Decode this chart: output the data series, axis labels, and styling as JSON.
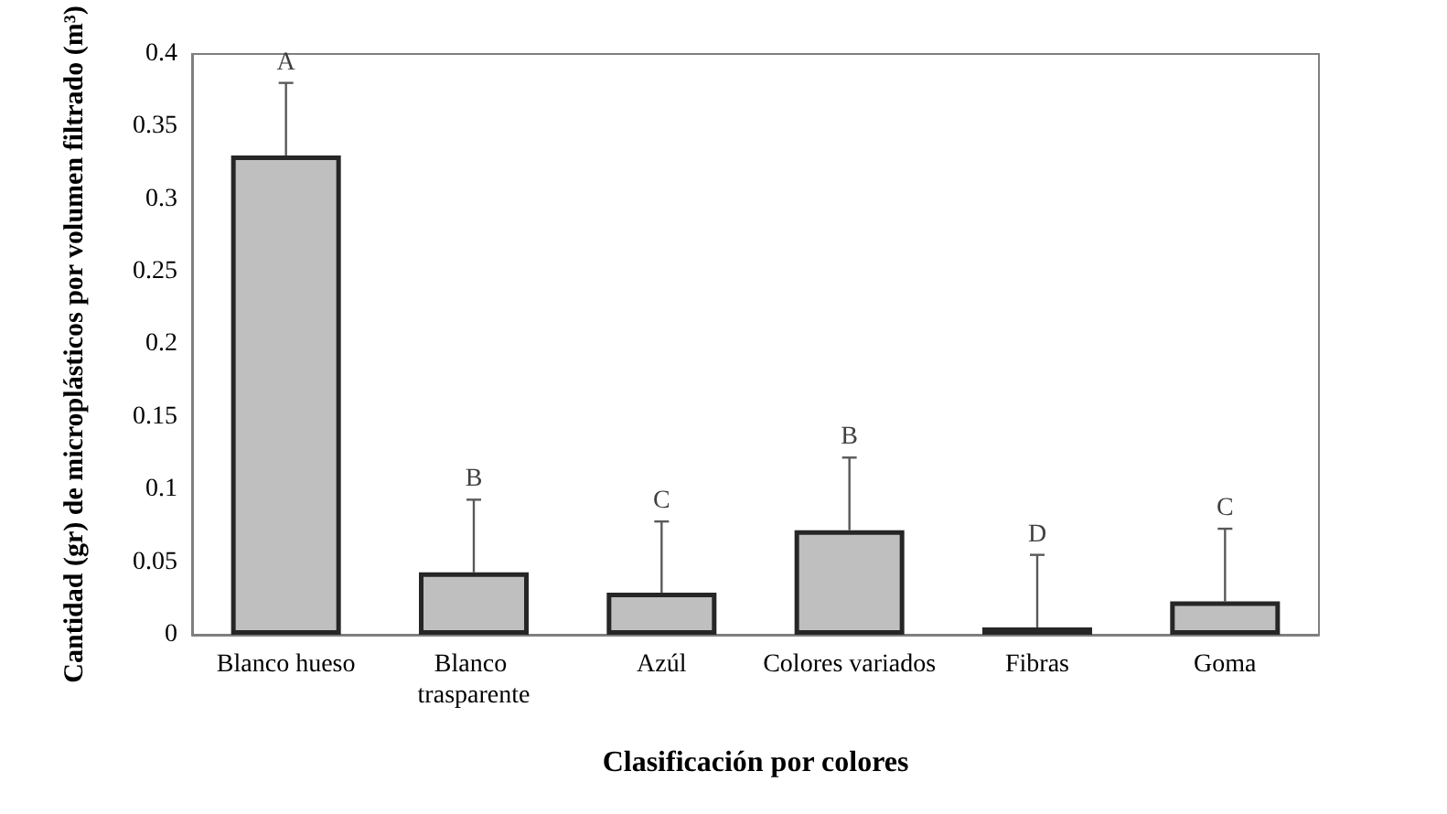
{
  "chart_data": {
    "type": "bar",
    "xlabel": "Clasificación por colores",
    "ylabel": "Cantidad (gr) de microplásticos por volumen filtrado (m³)",
    "categories": [
      "Blanco hueso",
      "Blanco trasparente",
      "Azúl",
      "Colores variados",
      "Fibras",
      "Goma"
    ],
    "values": [
      0.33,
      0.043,
      0.029,
      0.072,
      0.005,
      0.023
    ],
    "errors": [
      [
        0.33,
        0.38
      ],
      [
        0.043,
        0.093
      ],
      [
        0.029,
        0.078
      ],
      [
        0.072,
        0.122
      ],
      [
        0.005,
        0.055
      ],
      [
        0.023,
        0.073
      ]
    ],
    "color": "#bfbfbf",
    "ylim": [
      0,
      0.4
    ],
    "yticks": [
      0,
      0.05,
      0.1,
      0.15,
      0.2,
      0.25,
      0.3,
      0.35,
      0.4
    ],
    "annotations": [
      {
        "text": "A",
        "x": "Blanco hueso",
        "y": 0.38
      },
      {
        "text": "B",
        "x": "Blanco trasparente",
        "y": 0.093
      },
      {
        "text": "C",
        "x": "Azúl",
        "y": 0.078
      },
      {
        "text": "B",
        "x": "Colores variados",
        "y": 0.122
      },
      {
        "text": "D",
        "x": "Fibras",
        "y": 0.055
      },
      {
        "text": "C",
        "x": "Goma",
        "y": 0.073
      }
    ],
    "grid": false
  }
}
